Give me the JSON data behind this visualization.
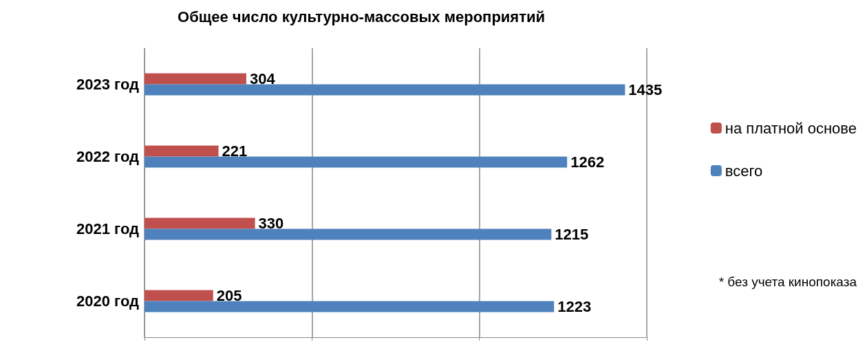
{
  "chart_data": {
    "type": "bar",
    "orientation": "horizontal",
    "title": "Общее число культурно-массовых мероприятий",
    "categories": [
      "2023 год",
      "2022 год",
      "2021 год",
      "2020 год"
    ],
    "series": [
      {
        "name": "на платной основе",
        "color": "#c0504d",
        "values": [
          304,
          221,
          330,
          205
        ]
      },
      {
        "name": "всего",
        "color": "#4f81bd",
        "values": [
          1435,
          1262,
          1215,
          1223
        ]
      }
    ],
    "xlim": [
      0,
      1500
    ],
    "xticks": [
      {
        "value": 0,
        "label": null
      },
      {
        "value": 500,
        "label": null
      },
      {
        "value": 1000,
        "label": null
      },
      {
        "value": 1500,
        "label": null
      }
    ],
    "tick_labels": "y",
    "grid": "x",
    "data_labels": true,
    "legend": "right",
    "annotations": [
      "* без учета кинопоказа"
    ]
  }
}
